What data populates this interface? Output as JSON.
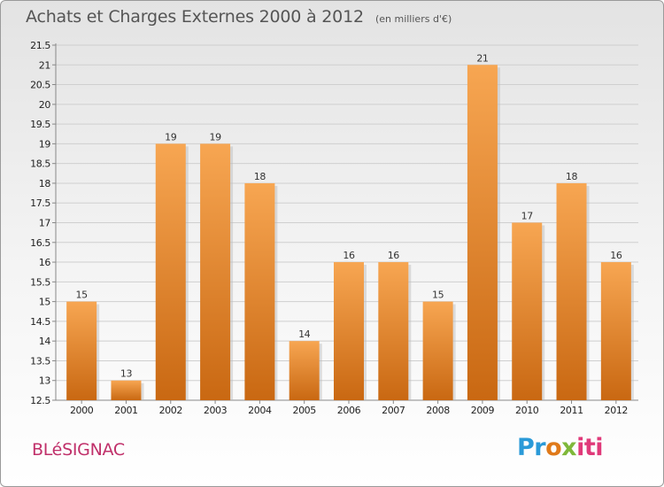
{
  "header": {
    "title": "Achats et Charges Externes 2000 à 2012",
    "subtitle": "(en milliers d'€)"
  },
  "footer": {
    "commune": "BLéSIGNAC",
    "logo": {
      "p": "Pr",
      "o": "o",
      "x": "x",
      "iti": "iti"
    }
  },
  "colors": {
    "bar_light": "#f7a652",
    "bar_dark": "#c96812",
    "grid": "#cfcfcf"
  },
  "chart_data": {
    "type": "bar",
    "categories": [
      "2000",
      "2001",
      "2002",
      "2003",
      "2004",
      "2005",
      "2006",
      "2007",
      "2008",
      "2009",
      "2010",
      "2011",
      "2012"
    ],
    "values": [
      15,
      13,
      19,
      19,
      18,
      14,
      16,
      16,
      15,
      21,
      17,
      18,
      16
    ],
    "data_labels": [
      "15",
      "13",
      "19",
      "19",
      "18",
      "14",
      "16",
      "16",
      "15",
      "21",
      "17",
      "18",
      "16"
    ],
    "yticks": [
      "12.5",
      "13",
      "13.5",
      "14",
      "14.5",
      "15",
      "15.5",
      "16",
      "16.5",
      "17",
      "17.5",
      "18",
      "18.5",
      "19",
      "19.5",
      "20",
      "20.5",
      "21",
      "21.5"
    ],
    "ylim": [
      12.5,
      21.5
    ],
    "grid": true,
    "legend": "none"
  }
}
